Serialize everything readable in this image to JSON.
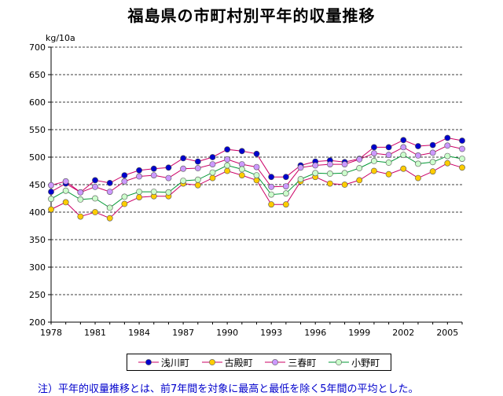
{
  "chart_data": {
    "type": "line",
    "title": "福島県の市町村別平年的収量推移",
    "ylabel": "kg/10a",
    "xlabel": "",
    "ylim": [
      200,
      700
    ],
    "yticks": [
      200,
      250,
      300,
      350,
      400,
      450,
      500,
      550,
      600,
      650,
      700
    ],
    "x": [
      1978,
      1979,
      1980,
      1981,
      1982,
      1983,
      1984,
      1985,
      1986,
      1987,
      1988,
      1989,
      1990,
      1991,
      1992,
      1993,
      1994,
      1995,
      1996,
      1997,
      1998,
      1999,
      2000,
      2001,
      2002,
      2003,
      2004,
      2005,
      2006
    ],
    "xticks": [
      1978,
      1981,
      1984,
      1987,
      1990,
      1993,
      1996,
      1999,
      2002,
      2005
    ],
    "grid": "horizontal-dashed",
    "legend_position": "bottom",
    "series": [
      {
        "name": "浅川町",
        "line_color": "#cc0066",
        "marker_color": "#0000cc",
        "values": [
          437,
          452,
          436,
          458,
          453,
          467,
          476,
          479,
          481,
          498,
          492,
          500,
          514,
          511,
          506,
          464,
          464,
          485,
          492,
          494,
          491,
          497,
          518,
          518,
          531,
          520,
          522,
          535,
          530
        ]
      },
      {
        "name": "古殿町",
        "line_color": "#cc0066",
        "marker_color": "#ffcc00",
        "values": [
          405,
          418,
          392,
          400,
          389,
          415,
          427,
          429,
          429,
          452,
          449,
          462,
          475,
          467,
          458,
          414,
          414,
          456,
          464,
          452,
          450,
          458,
          475,
          469,
          479,
          462,
          474,
          489,
          481
        ]
      },
      {
        "name": "三春町",
        "line_color": "#cc0066",
        "marker_color": "#cc99ff",
        "values": [
          449,
          456,
          436,
          446,
          437,
          456,
          465,
          467,
          462,
          479,
          480,
          487,
          496,
          487,
          482,
          446,
          447,
          481,
          485,
          487,
          487,
          496,
          507,
          504,
          518,
          503,
          508,
          521,
          515
        ]
      },
      {
        "name": "小野町",
        "line_color": "#009933",
        "marker_color": "#ccffcc",
        "values": [
          424,
          439,
          423,
          425,
          408,
          428,
          437,
          437,
          436,
          457,
          459,
          472,
          485,
          478,
          467,
          432,
          434,
          460,
          471,
          470,
          471,
          480,
          493,
          490,
          504,
          488,
          491,
          502,
          497
        ]
      }
    ]
  },
  "footnote": "注）平年的収量推移とは、前7年間を対象に最高と最低を除く5年間の平均とした。"
}
